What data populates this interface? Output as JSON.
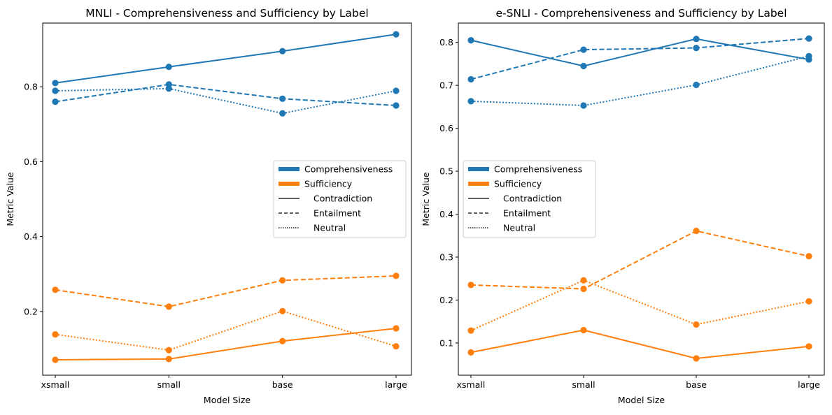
{
  "chart_data": [
    {
      "type": "line",
      "title": "MNLI - Comprehensiveness and Sufficiency by Label",
      "xlabel": "Model Size",
      "ylabel": "Metric Value",
      "categories": [
        "xsmall",
        "small",
        "base",
        "large"
      ],
      "ylim": [
        0.03,
        0.97
      ],
      "yticks": [
        0.2,
        0.4,
        0.6,
        0.8
      ],
      "ytick_labels": [
        "0.2",
        "0.4",
        "0.6",
        "0.8"
      ],
      "grid": false,
      "legend_placement": "center-right",
      "series": [
        {
          "metric": "Comprehensiveness",
          "label": "Contradiction",
          "values": [
            0.81,
            0.853,
            0.895,
            0.94
          ]
        },
        {
          "metric": "Comprehensiveness",
          "label": "Entailment",
          "values": [
            0.76,
            0.806,
            0.768,
            0.75
          ]
        },
        {
          "metric": "Comprehensiveness",
          "label": "Neutral",
          "values": [
            0.789,
            0.795,
            0.729,
            0.789
          ]
        },
        {
          "metric": "Sufficiency",
          "label": "Contradiction",
          "values": [
            0.071,
            0.073,
            0.121,
            0.155
          ]
        },
        {
          "metric": "Sufficiency",
          "label": "Entailment",
          "values": [
            0.258,
            0.213,
            0.283,
            0.295
          ]
        },
        {
          "metric": "Sufficiency",
          "label": "Neutral",
          "values": [
            0.139,
            0.097,
            0.201,
            0.107
          ]
        }
      ],
      "legend": [
        {
          "text": "Comprehensiveness",
          "kind": "color",
          "color": "#1f77b4"
        },
        {
          "text": "Sufficiency",
          "kind": "color",
          "color": "#ff7f0e"
        },
        {
          "text": "Contradiction",
          "kind": "style",
          "dash": "solid"
        },
        {
          "text": "Entailment",
          "kind": "style",
          "dash": "dashed"
        },
        {
          "text": "Neutral",
          "kind": "style",
          "dash": "dotted"
        }
      ]
    },
    {
      "type": "line",
      "title": "e-SNLI - Comprehensiveness and Sufficiency by Label",
      "xlabel": "Model Size",
      "ylabel": "Metric Value",
      "categories": [
        "xsmall",
        "small",
        "base",
        "large"
      ],
      "ylim": [
        0.025,
        0.845
      ],
      "yticks": [
        0.1,
        0.2,
        0.3,
        0.4,
        0.5,
        0.6,
        0.7,
        0.8
      ],
      "ytick_labels": [
        "0.1",
        "0.2",
        "0.3",
        "0.4",
        "0.5",
        "0.6",
        "0.7",
        "0.8"
      ],
      "grid": false,
      "legend_placement": "center-left",
      "series": [
        {
          "metric": "Comprehensiveness",
          "label": "Contradiction",
          "values": [
            0.805,
            0.745,
            0.808,
            0.76
          ]
        },
        {
          "metric": "Comprehensiveness",
          "label": "Entailment",
          "values": [
            0.714,
            0.783,
            0.787,
            0.809
          ]
        },
        {
          "metric": "Comprehensiveness",
          "label": "Neutral",
          "values": [
            0.663,
            0.653,
            0.701,
            0.768
          ]
        },
        {
          "metric": "Sufficiency",
          "label": "Contradiction",
          "values": [
            0.078,
            0.13,
            0.064,
            0.092
          ]
        },
        {
          "metric": "Sufficiency",
          "label": "Entailment",
          "values": [
            0.235,
            0.226,
            0.361,
            0.302
          ]
        },
        {
          "metric": "Sufficiency",
          "label": "Neutral",
          "values": [
            0.129,
            0.246,
            0.143,
            0.197
          ]
        }
      ],
      "legend": [
        {
          "text": "Comprehensiveness",
          "kind": "color",
          "color": "#1f77b4"
        },
        {
          "text": "Sufficiency",
          "kind": "color",
          "color": "#ff7f0e"
        },
        {
          "text": "Contradiction",
          "kind": "style",
          "dash": "solid"
        },
        {
          "text": "Entailment",
          "kind": "style",
          "dash": "dashed"
        },
        {
          "text": "Neutral",
          "kind": "style",
          "dash": "dotted"
        }
      ]
    }
  ],
  "colors": {
    "Comprehensiveness": "#1f77b4",
    "Sufficiency": "#ff7f0e"
  }
}
